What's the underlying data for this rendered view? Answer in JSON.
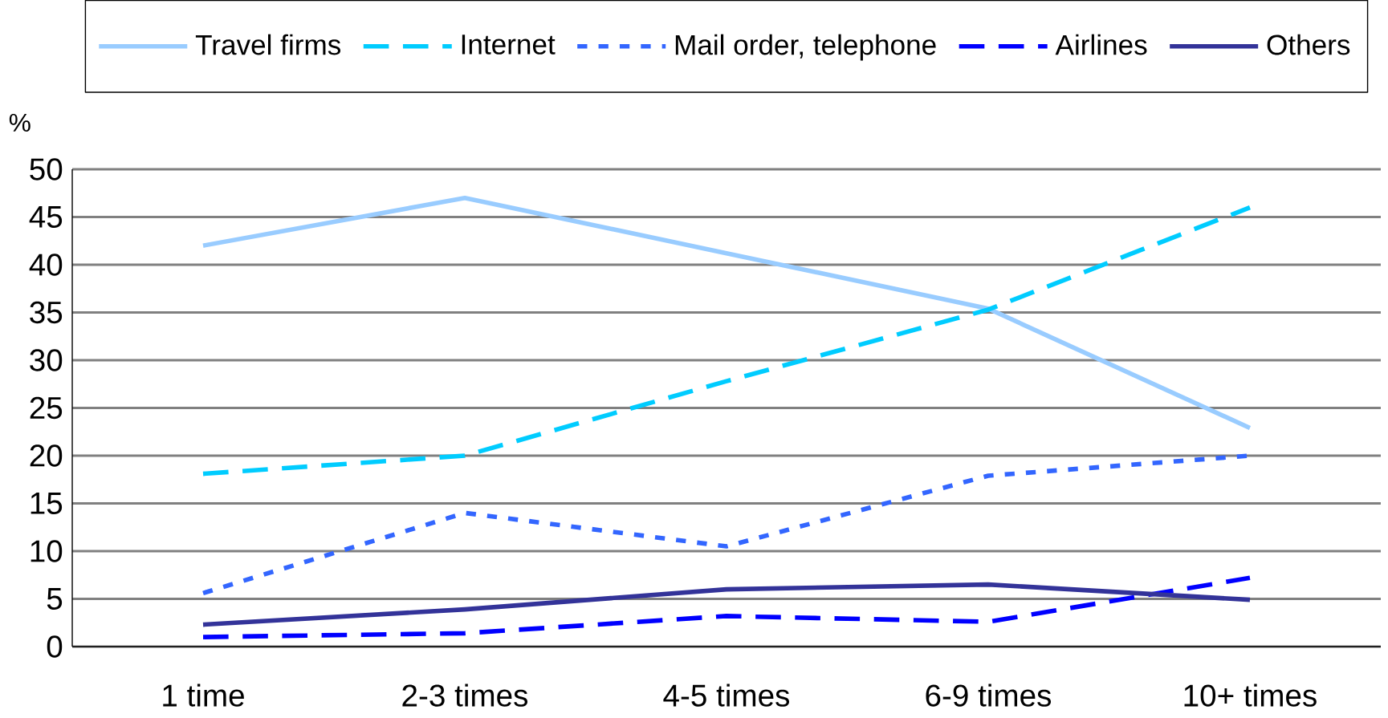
{
  "chart_data": {
    "type": "line",
    "ylabel": "%",
    "categories": [
      "1 time",
      "2-3 times",
      "4-5 times",
      "6-9 times",
      "10+ times"
    ],
    "series": [
      {
        "name": "Travel firms",
        "color": "#99ccff",
        "line_style": "solid",
        "values": [
          42,
          47,
          41.2,
          35.4,
          22.9
        ]
      },
      {
        "name": "Internet",
        "color": "#00ccff",
        "line_style": "dashed",
        "values": [
          18.1,
          20,
          27.8,
          35.3,
          46
        ]
      },
      {
        "name": "Mail order, telephone",
        "color": "#3366ff",
        "line_style": "dotted",
        "values": [
          5.6,
          14,
          10.5,
          17.9,
          20
        ]
      },
      {
        "name": "Airlines",
        "color": "#0000ff",
        "line_style": "dashed",
        "values": [
          1,
          1.4,
          3.2,
          2.6,
          7.2
        ]
      },
      {
        "name": "Others",
        "color": "#333399",
        "line_style": "solid",
        "values": [
          2.3,
          3.9,
          6,
          6.5,
          4.9
        ]
      }
    ],
    "ylim": [
      0,
      50
    ],
    "yticks": [
      0,
      5,
      10,
      15,
      20,
      25,
      30,
      35,
      40,
      45,
      50
    ],
    "grid": "y",
    "legend": "top",
    "marker": "none"
  }
}
